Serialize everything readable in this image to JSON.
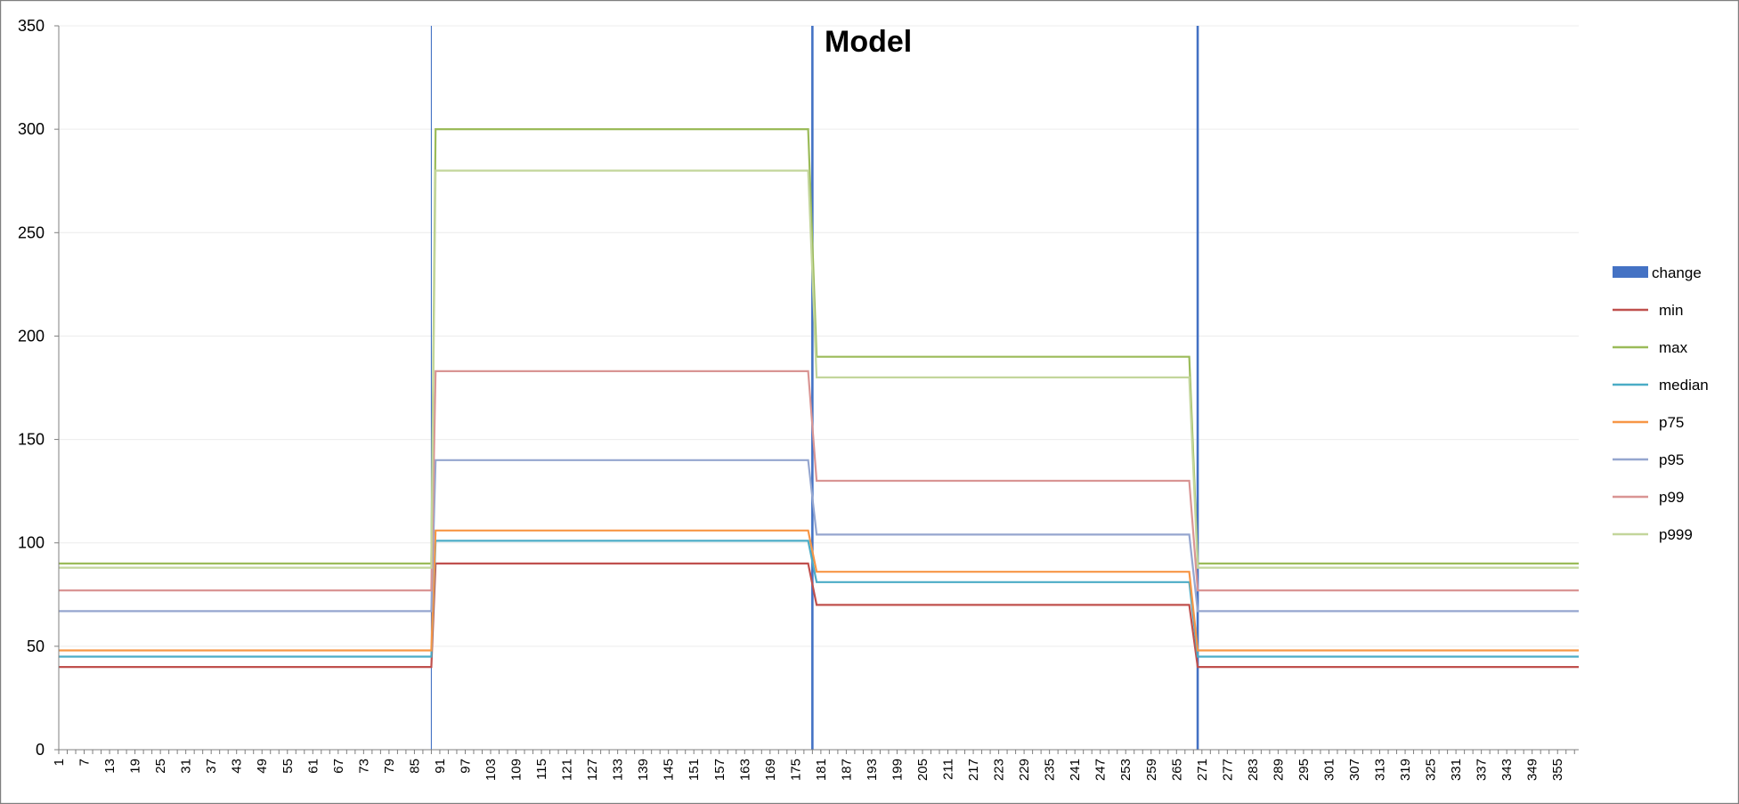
{
  "chart_data": {
    "type": "line",
    "title": "Model",
    "x_range": [
      1,
      360
    ],
    "x_tick_start": 1,
    "x_tick_step": 6,
    "ylim": [
      0,
      350
    ],
    "y_ticks": [
      0,
      50,
      100,
      150,
      200,
      250,
      300,
      350
    ],
    "grid": true,
    "legend_position": "right",
    "change_bars": {
      "name": "change",
      "color": "#4472C4",
      "x": [
        89,
        179,
        270
      ],
      "style": [
        "thin",
        "thick",
        "thick"
      ]
    },
    "series": [
      {
        "name": "min",
        "color": "#C0504D",
        "segments": [
          {
            "x": [
              1,
              89
            ],
            "y": 40
          },
          {
            "x": [
              90,
              178
            ],
            "y": 90
          },
          {
            "x": [
              180,
              268
            ],
            "y": 70
          },
          {
            "x": [
              270,
              360
            ],
            "y": 40
          }
        ]
      },
      {
        "name": "max",
        "color": "#9BBB59",
        "segments": [
          {
            "x": [
              1,
              89
            ],
            "y": 90
          },
          {
            "x": [
              90,
              178
            ],
            "y": 300
          },
          {
            "x": [
              180,
              268
            ],
            "y": 190
          },
          {
            "x": [
              270,
              360
            ],
            "y": 90
          }
        ]
      },
      {
        "name": "median",
        "color": "#4BACC6",
        "segments": [
          {
            "x": [
              1,
              89
            ],
            "y": 45
          },
          {
            "x": [
              90,
              178
            ],
            "y": 101
          },
          {
            "x": [
              180,
              268
            ],
            "y": 81
          },
          {
            "x": [
              270,
              360
            ],
            "y": 45
          }
        ]
      },
      {
        "name": "p75",
        "color": "#F79646",
        "segments": [
          {
            "x": [
              1,
              89
            ],
            "y": 48
          },
          {
            "x": [
              90,
              178
            ],
            "y": 106
          },
          {
            "x": [
              180,
              268
            ],
            "y": 86
          },
          {
            "x": [
              270,
              360
            ],
            "y": 48
          }
        ]
      },
      {
        "name": "p95",
        "color": "#95A6CF",
        "segments": [
          {
            "x": [
              1,
              89
            ],
            "y": 67
          },
          {
            "x": [
              90,
              178
            ],
            "y": 140
          },
          {
            "x": [
              180,
              268
            ],
            "y": 104
          },
          {
            "x": [
              270,
              360
            ],
            "y": 67
          }
        ]
      },
      {
        "name": "p99",
        "color": "#D99594",
        "segments": [
          {
            "x": [
              1,
              89
            ],
            "y": 77
          },
          {
            "x": [
              90,
              178
            ],
            "y": 183
          },
          {
            "x": [
              180,
              268
            ],
            "y": 130
          },
          {
            "x": [
              270,
              360
            ],
            "y": 77
          }
        ]
      },
      {
        "name": "p999",
        "color": "#C3D69B",
        "segments": [
          {
            "x": [
              1,
              89
            ],
            "y": 88
          },
          {
            "x": [
              90,
              178
            ],
            "y": 280
          },
          {
            "x": [
              180,
              268
            ],
            "y": 180
          },
          {
            "x": [
              270,
              360
            ],
            "y": 88
          }
        ]
      }
    ]
  }
}
